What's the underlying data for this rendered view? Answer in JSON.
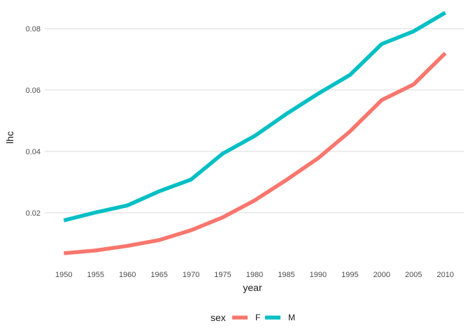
{
  "chart_data": {
    "type": "line",
    "xlabel": "year",
    "ylabel": "lhc",
    "x": [
      1950,
      1955,
      1960,
      1965,
      1970,
      1975,
      1980,
      1985,
      1990,
      1995,
      2000,
      2005,
      2010
    ],
    "x_ticks": [
      "1950",
      "1955",
      "1960",
      "1965",
      "1970",
      "1975",
      "1980",
      "1985",
      "1990",
      "1995",
      "2000",
      "2005",
      "2010"
    ],
    "y_ticks": [
      "0.02",
      "0.04",
      "0.06",
      "0.08"
    ],
    "ylim": [
      0.0045,
      0.0875
    ],
    "grid": "horizontal major",
    "legend": {
      "title": "sex",
      "position": "bottom",
      "entries": [
        {
          "label": "F",
          "color": "#F8766D"
        },
        {
          "label": "M",
          "color": "#00BFC4"
        }
      ]
    },
    "series": [
      {
        "name": "F",
        "color": "#F8766D",
        "values": [
          0.0068,
          0.0077,
          0.0092,
          0.0111,
          0.0143,
          0.0185,
          0.024,
          0.0307,
          0.0378,
          0.0465,
          0.0567,
          0.0618,
          0.072
        ]
      },
      {
        "name": "M",
        "color": "#00BFC4",
        "values": [
          0.0175,
          0.0201,
          0.0224,
          0.027,
          0.0308,
          0.0393,
          0.045,
          0.0522,
          0.0588,
          0.0649,
          0.075,
          0.0791,
          0.0852
        ]
      }
    ]
  }
}
